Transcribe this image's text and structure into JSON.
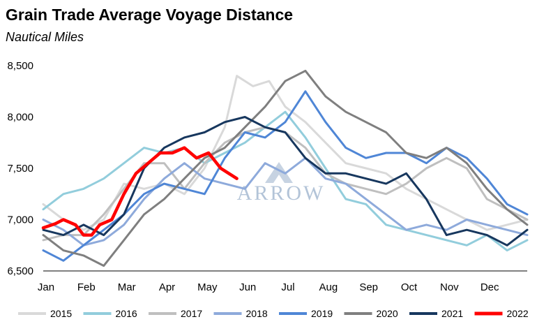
{
  "chart_data": {
    "type": "line",
    "title": "Grain Trade Average Voyage Distance",
    "subtitle": "Nautical Miles",
    "watermark": "ARROW",
    "ylim": [
      6500,
      8500
    ],
    "yticks": [
      6500,
      7000,
      7500,
      8000,
      8500
    ],
    "ytick_labels": [
      "6,500",
      "7,000",
      "7,500",
      "8,000",
      "8,500"
    ],
    "xlim": [
      0,
      12
    ],
    "categories": [
      "Jan",
      "Feb",
      "Mar",
      "Apr",
      "May",
      "Jun",
      "Jul",
      "Aug",
      "Sep",
      "Oct",
      "Nov",
      "Dec"
    ],
    "legend_position": "bottom",
    "grid": "none",
    "series": [
      {
        "name": "2015",
        "color": "#d9d9d9",
        "width": 3,
        "points": [
          [
            0,
            7150
          ],
          [
            0.5,
            7000
          ],
          [
            1,
            6900
          ],
          [
            1.5,
            7000
          ],
          [
            2,
            7350
          ],
          [
            2.5,
            7300
          ],
          [
            3,
            7350
          ],
          [
            3.5,
            7250
          ],
          [
            4,
            7500
          ],
          [
            4.5,
            7900
          ],
          [
            4.8,
            8400
          ],
          [
            5.2,
            8300
          ],
          [
            5.6,
            8350
          ],
          [
            6,
            8100
          ],
          [
            6.5,
            7950
          ],
          [
            7,
            7750
          ],
          [
            7.5,
            7550
          ],
          [
            8,
            7500
          ],
          [
            8.5,
            7450
          ],
          [
            9,
            7300
          ],
          [
            9.5,
            7200
          ],
          [
            10,
            7100
          ],
          [
            10.5,
            7000
          ],
          [
            11,
            6900
          ],
          [
            11.5,
            6950
          ],
          [
            12,
            7000
          ]
        ]
      },
      {
        "name": "2016",
        "color": "#92cddc",
        "width": 3,
        "points": [
          [
            0,
            7100
          ],
          [
            0.5,
            7250
          ],
          [
            1,
            7300
          ],
          [
            1.5,
            7400
          ],
          [
            2,
            7550
          ],
          [
            2.5,
            7700
          ],
          [
            3,
            7650
          ],
          [
            3.5,
            7700
          ],
          [
            4,
            7550
          ],
          [
            4.5,
            7650
          ],
          [
            5,
            7750
          ],
          [
            5.5,
            7900
          ],
          [
            6,
            8050
          ],
          [
            6.5,
            7800
          ],
          [
            7,
            7500
          ],
          [
            7.5,
            7200
          ],
          [
            8,
            7150
          ],
          [
            8.5,
            6950
          ],
          [
            9,
            6900
          ],
          [
            9.5,
            6850
          ],
          [
            10,
            6800
          ],
          [
            10.5,
            6750
          ],
          [
            11,
            6850
          ],
          [
            11.5,
            6700
          ],
          [
            12,
            6800
          ]
        ]
      },
      {
        "name": "2017",
        "color": "#bfbfbf",
        "width": 3,
        "points": [
          [
            0,
            6800
          ],
          [
            0.5,
            6850
          ],
          [
            1,
            6850
          ],
          [
            1.5,
            7050
          ],
          [
            2,
            7300
          ],
          [
            2.5,
            7550
          ],
          [
            3,
            7550
          ],
          [
            3.5,
            7300
          ],
          [
            4,
            7550
          ],
          [
            4.5,
            7750
          ],
          [
            5,
            7850
          ],
          [
            5.5,
            7900
          ],
          [
            6,
            7850
          ],
          [
            6.5,
            7700
          ],
          [
            7,
            7450
          ],
          [
            7.5,
            7350
          ],
          [
            8,
            7300
          ],
          [
            8.5,
            7250
          ],
          [
            9,
            7350
          ],
          [
            9.5,
            7500
          ],
          [
            10,
            7600
          ],
          [
            10.5,
            7500
          ],
          [
            11,
            7200
          ],
          [
            11.5,
            7100
          ],
          [
            12,
            7000
          ]
        ]
      },
      {
        "name": "2018",
        "color": "#8eaadb",
        "width": 3,
        "points": [
          [
            0,
            7000
          ],
          [
            0.5,
            6900
          ],
          [
            1,
            6750
          ],
          [
            1.5,
            6800
          ],
          [
            2,
            6950
          ],
          [
            2.5,
            7200
          ],
          [
            3,
            7400
          ],
          [
            3.5,
            7550
          ],
          [
            4,
            7400
          ],
          [
            4.5,
            7350
          ],
          [
            5,
            7300
          ],
          [
            5.5,
            7550
          ],
          [
            6,
            7450
          ],
          [
            6.5,
            7600
          ],
          [
            7,
            7400
          ],
          [
            7.5,
            7350
          ],
          [
            8,
            7200
          ],
          [
            8.5,
            7050
          ],
          [
            9,
            6900
          ],
          [
            9.5,
            6950
          ],
          [
            10,
            6900
          ],
          [
            10.5,
            7000
          ],
          [
            11,
            6950
          ],
          [
            11.5,
            6900
          ],
          [
            12,
            6850
          ]
        ]
      },
      {
        "name": "2019",
        "color": "#4f86d6",
        "width": 3,
        "points": [
          [
            0,
            6700
          ],
          [
            0.5,
            6600
          ],
          [
            1,
            6750
          ],
          [
            1.5,
            6900
          ],
          [
            2,
            7050
          ],
          [
            2.5,
            7250
          ],
          [
            3,
            7350
          ],
          [
            3.5,
            7300
          ],
          [
            4,
            7250
          ],
          [
            4.5,
            7600
          ],
          [
            5,
            7850
          ],
          [
            5.5,
            7800
          ],
          [
            6,
            7950
          ],
          [
            6.5,
            8250
          ],
          [
            7,
            7950
          ],
          [
            7.5,
            7700
          ],
          [
            8,
            7600
          ],
          [
            8.5,
            7650
          ],
          [
            9,
            7650
          ],
          [
            9.5,
            7550
          ],
          [
            10,
            7700
          ],
          [
            10.5,
            7600
          ],
          [
            11,
            7400
          ],
          [
            11.5,
            7150
          ],
          [
            12,
            7050
          ]
        ]
      },
      {
        "name": "2020",
        "color": "#7f7f7f",
        "width": 3,
        "points": [
          [
            0,
            6850
          ],
          [
            0.5,
            6700
          ],
          [
            1,
            6650
          ],
          [
            1.5,
            6550
          ],
          [
            2,
            6800
          ],
          [
            2.5,
            7050
          ],
          [
            3,
            7200
          ],
          [
            3.5,
            7400
          ],
          [
            4,
            7600
          ],
          [
            4.5,
            7700
          ],
          [
            5,
            7900
          ],
          [
            5.5,
            8100
          ],
          [
            6,
            8350
          ],
          [
            6.5,
            8450
          ],
          [
            7,
            8200
          ],
          [
            7.5,
            8050
          ],
          [
            8,
            7950
          ],
          [
            8.5,
            7850
          ],
          [
            9,
            7650
          ],
          [
            9.5,
            7600
          ],
          [
            10,
            7700
          ],
          [
            10.5,
            7550
          ],
          [
            11,
            7300
          ],
          [
            11.5,
            7100
          ],
          [
            12,
            6950
          ]
        ]
      },
      {
        "name": "2021",
        "color": "#17375e",
        "width": 3,
        "points": [
          [
            0,
            6900
          ],
          [
            0.5,
            6850
          ],
          [
            1,
            6950
          ],
          [
            1.5,
            6850
          ],
          [
            2,
            7050
          ],
          [
            2.5,
            7500
          ],
          [
            3,
            7700
          ],
          [
            3.5,
            7800
          ],
          [
            4,
            7850
          ],
          [
            4.5,
            7950
          ],
          [
            5,
            8000
          ],
          [
            5.5,
            7900
          ],
          [
            6,
            7850
          ],
          [
            6.5,
            7600
          ],
          [
            7,
            7450
          ],
          [
            7.5,
            7450
          ],
          [
            8,
            7400
          ],
          [
            8.5,
            7350
          ],
          [
            9,
            7450
          ],
          [
            9.5,
            7200
          ],
          [
            10,
            6850
          ],
          [
            10.5,
            6900
          ],
          [
            11,
            6850
          ],
          [
            11.5,
            6750
          ],
          [
            12,
            6900
          ]
        ]
      },
      {
        "name": "2022",
        "color": "#ff0000",
        "width": 4.5,
        "points": [
          [
            0,
            6920
          ],
          [
            0.3,
            6960
          ],
          [
            0.5,
            7000
          ],
          [
            0.8,
            6950
          ],
          [
            1,
            6850
          ],
          [
            1.2,
            6850
          ],
          [
            1.4,
            6950
          ],
          [
            1.7,
            7000
          ],
          [
            2,
            7250
          ],
          [
            2.3,
            7450
          ],
          [
            2.6,
            7550
          ],
          [
            2.9,
            7650
          ],
          [
            3.2,
            7650
          ],
          [
            3.5,
            7700
          ],
          [
            3.8,
            7600
          ],
          [
            4.1,
            7650
          ],
          [
            4.4,
            7500
          ],
          [
            4.6,
            7450
          ],
          [
            4.8,
            7400
          ]
        ]
      }
    ]
  }
}
